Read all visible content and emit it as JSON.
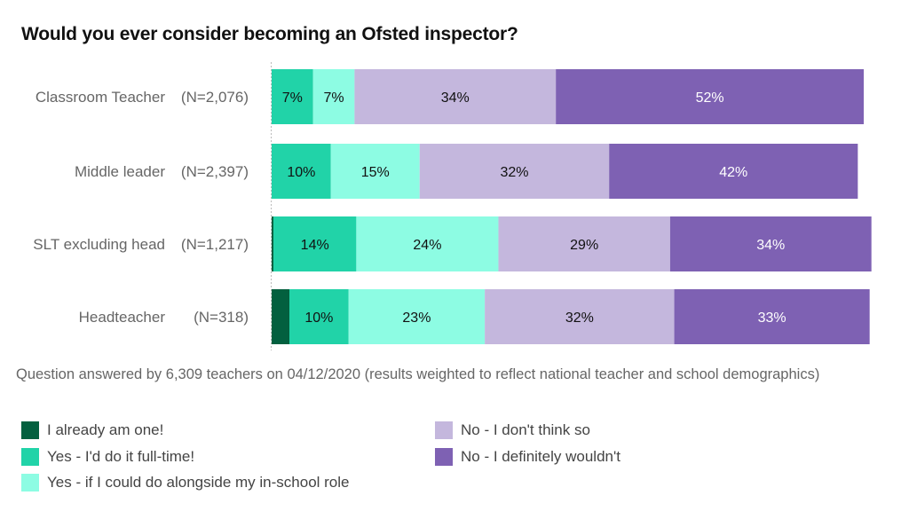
{
  "chart_data": {
    "type": "bar",
    "orientation": "horizontal",
    "stacked": true,
    "normalized": true,
    "title": "Would you ever consider becoming an Ofsted inspector?",
    "xlabel": "",
    "ylabel": "",
    "xlim": [
      0,
      100
    ],
    "grid": false,
    "legend_position": "bottom",
    "categories": [
      {
        "name": "Classroom Teacher",
        "n": "(N=2,076)"
      },
      {
        "name": "Middle leader",
        "n": "(N=2,397)"
      },
      {
        "name": "SLT excluding head",
        "n": "(N=1,217)"
      },
      {
        "name": "Headteacher",
        "n": "(N=318)"
      }
    ],
    "series": [
      {
        "name": "I already am one!",
        "color": "#03603F",
        "text_color": "#111111",
        "values": [
          0,
          0,
          0.3,
          3
        ],
        "labels": [
          "",
          "",
          "",
          ""
        ]
      },
      {
        "name": "Yes - I'd do it full-time!",
        "color": "#21D3A8",
        "text_color": "#111111",
        "values": [
          7,
          10,
          14,
          10
        ],
        "labels": [
          "7%",
          "10%",
          "14%",
          "10%"
        ]
      },
      {
        "name": "Yes - if I could do alongside my in-school role",
        "color": "#8DFCE3",
        "text_color": "#111111",
        "values": [
          7,
          15,
          24,
          23
        ],
        "labels": [
          "7%",
          "15%",
          "24%",
          "23%"
        ]
      },
      {
        "name": "No - I don't think so",
        "color": "#C4B7DD",
        "text_color": "#111111",
        "values": [
          34,
          32,
          29,
          32
        ],
        "labels": [
          "34%",
          "32%",
          "29%",
          "32%"
        ]
      },
      {
        "name": "No - I definitely wouldn't",
        "color": "#7E61B3",
        "text_color": "#FFFFFF",
        "values": [
          52,
          42,
          34,
          33
        ],
        "labels": [
          "52%",
          "42%",
          "34%",
          "33%"
        ]
      }
    ],
    "footnote": "Question answered by 6,309 teachers on 04/12/2020 (results weighted to reflect national teacher and school demographics)"
  },
  "legend": {
    "items": [
      {
        "label": "I already am one!",
        "color": "#03603F"
      },
      {
        "label": "Yes - I'd do it full-time!",
        "color": "#21D3A8"
      },
      {
        "label": "Yes - if I could do alongside my in-school role",
        "color": "#8DFCE3"
      },
      {
        "label": "No - I don't think so",
        "color": "#C4B7DD"
      },
      {
        "label": "No - I definitely wouldn't",
        "color": "#7E61B3"
      }
    ]
  }
}
